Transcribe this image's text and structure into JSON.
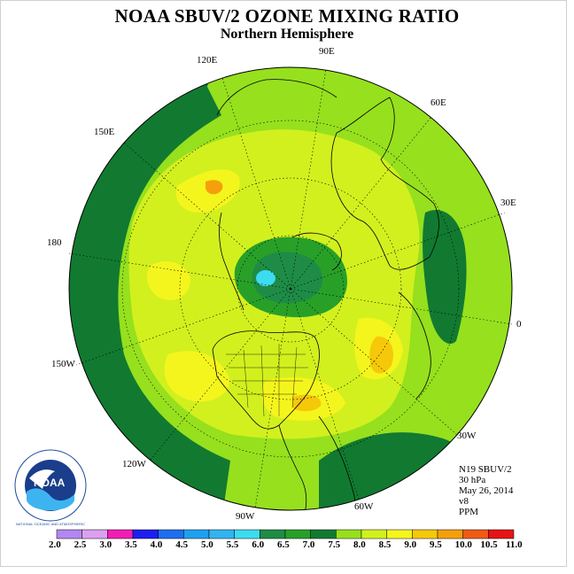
{
  "title": "NOAA SBUV/2 OZONE MIXING RATIO",
  "subtitle": "Northern Hemisphere",
  "longitude_labels": {
    "lon_90e": "90E",
    "lon_60e": "60E",
    "lon_30e": "30E",
    "lon_0": "0",
    "lon_30w": "30W",
    "lon_60w": "60W",
    "lon_90w": "90W",
    "lon_120w": "120W",
    "lon_150w": "150W",
    "lon_180": "180",
    "lon_150e": "150E",
    "lon_120e": "120E"
  },
  "info": {
    "instrument": "N19 SBUV/2",
    "level": "30 hPa",
    "date": "May 26, 2014",
    "version": "v8",
    "units": "PPM"
  },
  "logo": {
    "center_text": "NOAA",
    "ring_text": "NATIONAL OCEANIC AND ATMOSPHERIC ADMINISTRATION · U.S. DEPARTMENT OF COMMERCE"
  },
  "colorbar": {
    "tick_labels": [
      "2.0",
      "2.5",
      "3.0",
      "3.5",
      "4.0",
      "4.5",
      "5.0",
      "5.5",
      "6.0",
      "6.5",
      "7.0",
      "7.5",
      "8.0",
      "8.5",
      "9.0",
      "9.5",
      "10.0",
      "10.5",
      "11.0"
    ],
    "colors": [
      "#b487f0",
      "#dca0f0",
      "#f01eb4",
      "#1e1ef0",
      "#1e6ef0",
      "#1ea0f0",
      "#32b4f0",
      "#3cdcf0",
      "#1e8c46",
      "#28a028",
      "#117a30",
      "#96e01e",
      "#d2f01e",
      "#f5f51e",
      "#f5c80a",
      "#f5a00a",
      "#f05a14",
      "#e61414",
      "#8c5a3c"
    ]
  }
}
